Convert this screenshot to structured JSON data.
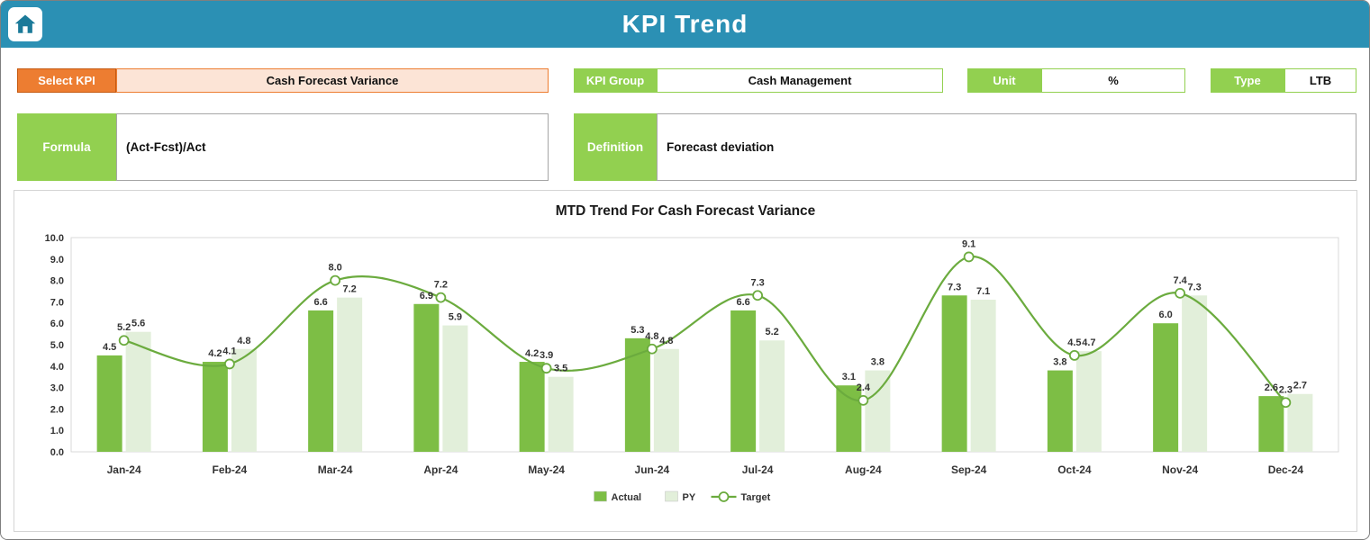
{
  "header": {
    "title": "KPI Trend",
    "home_icon": "home-icon"
  },
  "controls": {
    "select_kpi_label": "Select KPI",
    "select_kpi_value": "Cash Forecast Variance",
    "kpi_group_label": "KPI Group",
    "kpi_group_value": "Cash Management",
    "unit_label": "Unit",
    "unit_value": "%",
    "type_label": "Type",
    "type_value": "LTB",
    "formula_label": "Formula",
    "formula_value": "(Act-Fcst)/Act",
    "definition_label": "Definition",
    "definition_value": "Forecast deviation"
  },
  "colors": {
    "header_bg": "#2B90B4",
    "accent_orange": "#ED7D31",
    "orange_fill": "#FCE4D6",
    "green": "#92D050",
    "bar_actual": "#7DBE45",
    "bar_py": "#E2EFDA",
    "line_target": "#6BAB3E",
    "label_text": "#333333"
  },
  "chart_data": {
    "type": "bar",
    "subtype": "bar+line-combo",
    "title": "MTD Trend For Cash Forecast Variance",
    "categories": [
      "Jan-24",
      "Feb-24",
      "Mar-24",
      "Apr-24",
      "May-24",
      "Jun-24",
      "Jul-24",
      "Aug-24",
      "Sep-24",
      "Oct-24",
      "Nov-24",
      "Dec-24"
    ],
    "series": [
      {
        "name": "Actual",
        "type": "bar",
        "color": "#7DBE45",
        "values": [
          4.5,
          4.2,
          6.6,
          6.9,
          4.2,
          5.3,
          6.6,
          3.1,
          7.3,
          3.8,
          6.0,
          2.6
        ]
      },
      {
        "name": "PY",
        "type": "bar",
        "color": "#E2EFDA",
        "values": [
          5.6,
          4.8,
          7.2,
          5.9,
          3.5,
          4.8,
          5.2,
          3.8,
          7.1,
          4.7,
          7.3,
          2.7
        ]
      },
      {
        "name": "Target",
        "type": "line",
        "color": "#6BAB3E",
        "values": [
          5.2,
          4.1,
          8.0,
          7.2,
          3.9,
          4.8,
          7.3,
          2.4,
          9.1,
          4.5,
          7.4,
          2.3
        ]
      }
    ],
    "ylim": [
      0,
      10
    ],
    "ytick_step": 1,
    "grid": false,
    "legend_position": "bottom",
    "data_labels": true
  }
}
